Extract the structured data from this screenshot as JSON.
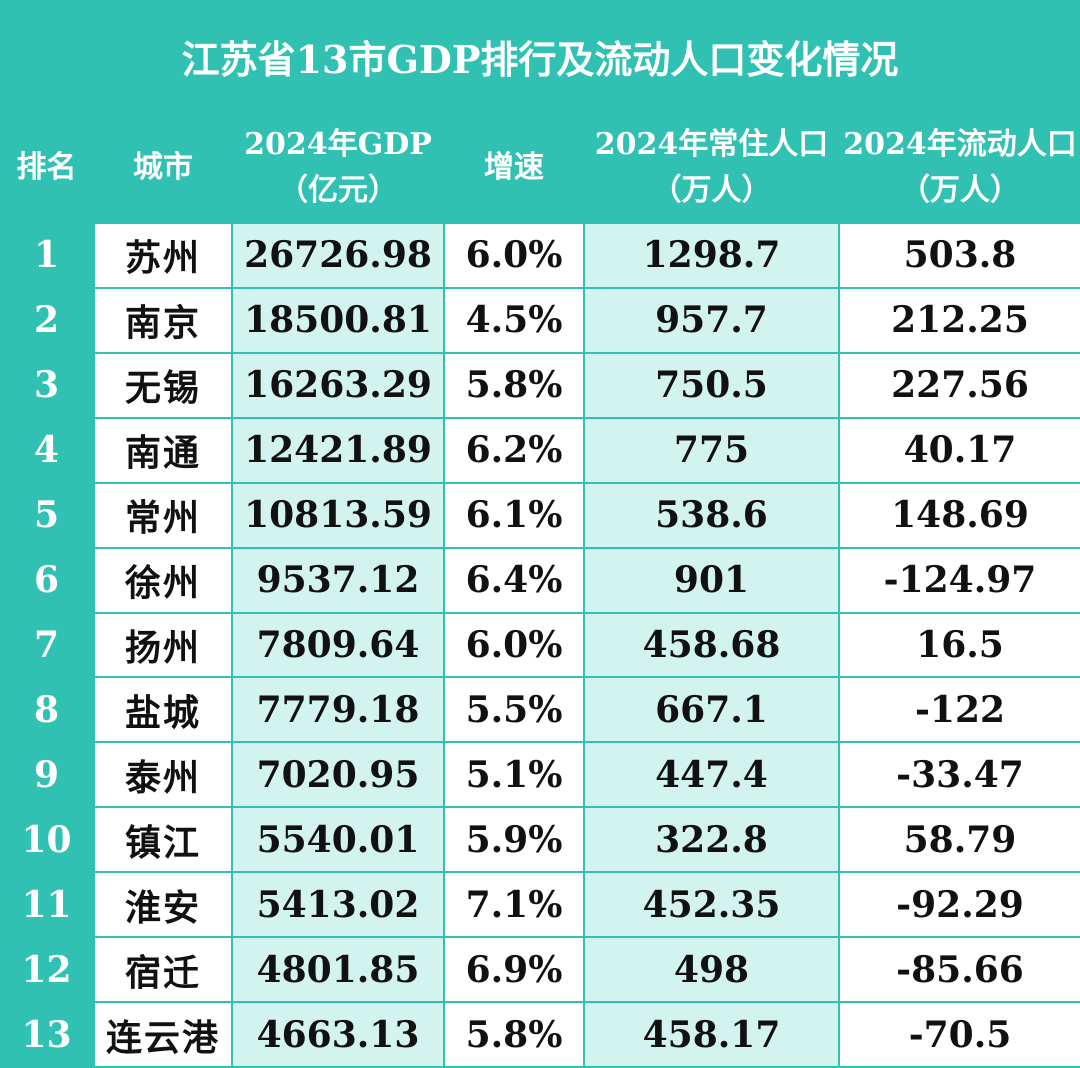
{
  "title": "江苏省13市GDP排行及流动人口变化情况",
  "colors": {
    "header_bg": "#30c1b3",
    "header_text": "#ffffff",
    "cell_white": "#ffffff",
    "cell_mint": "#d3f3ef",
    "cell_text": "#111111"
  },
  "chart_data": {
    "type": "table",
    "title": "江苏省13市GDP排行及流动人口变化情况",
    "columns": [
      {
        "key": "rank",
        "label": [
          "排名"
        ]
      },
      {
        "key": "city",
        "label": [
          "城市"
        ]
      },
      {
        "key": "gdp",
        "label": [
          "2024年GDP",
          "（亿元）"
        ]
      },
      {
        "key": "growth",
        "label": [
          "增速"
        ]
      },
      {
        "key": "resident",
        "label": [
          "2024年常住人口",
          "（万人）"
        ]
      },
      {
        "key": "floating",
        "label": [
          "2024年流动人口",
          "（万人）"
        ]
      }
    ],
    "rows": [
      {
        "rank": "1",
        "city": "苏州",
        "gdp": "26726.98",
        "growth": "6.0%",
        "resident": "1298.7",
        "floating": "503.8"
      },
      {
        "rank": "2",
        "city": "南京",
        "gdp": "18500.81",
        "growth": "4.5%",
        "resident": "957.7",
        "floating": "212.25"
      },
      {
        "rank": "3",
        "city": "无锡",
        "gdp": "16263.29",
        "growth": "5.8%",
        "resident": "750.5",
        "floating": "227.56"
      },
      {
        "rank": "4",
        "city": "南通",
        "gdp": "12421.89",
        "growth": "6.2%",
        "resident": "775",
        "floating": "40.17"
      },
      {
        "rank": "5",
        "city": "常州",
        "gdp": "10813.59",
        "growth": "6.1%",
        "resident": "538.6",
        "floating": "148.69"
      },
      {
        "rank": "6",
        "city": "徐州",
        "gdp": "9537.12",
        "growth": "6.4%",
        "resident": "901",
        "floating": "-124.97"
      },
      {
        "rank": "7",
        "city": "扬州",
        "gdp": "7809.64",
        "growth": "6.0%",
        "resident": "458.68",
        "floating": "16.5"
      },
      {
        "rank": "8",
        "city": "盐城",
        "gdp": "7779.18",
        "growth": "5.5%",
        "resident": "667.1",
        "floating": "-122"
      },
      {
        "rank": "9",
        "city": "泰州",
        "gdp": "7020.95",
        "growth": "5.1%",
        "resident": "447.4",
        "floating": "-33.47"
      },
      {
        "rank": "10",
        "city": "镇江",
        "gdp": "5540.01",
        "growth": "5.9%",
        "resident": "322.8",
        "floating": "58.79"
      },
      {
        "rank": "11",
        "city": "淮安",
        "gdp": "5413.02",
        "growth": "7.1%",
        "resident": "452.35",
        "floating": "-92.29"
      },
      {
        "rank": "12",
        "city": "宿迁",
        "gdp": "4801.85",
        "growth": "6.9%",
        "resident": "498",
        "floating": "-85.66"
      },
      {
        "rank": "13",
        "city": "连云港",
        "gdp": "4663.13",
        "growth": "5.8%",
        "resident": "458.17",
        "floating": "-70.5"
      }
    ]
  }
}
